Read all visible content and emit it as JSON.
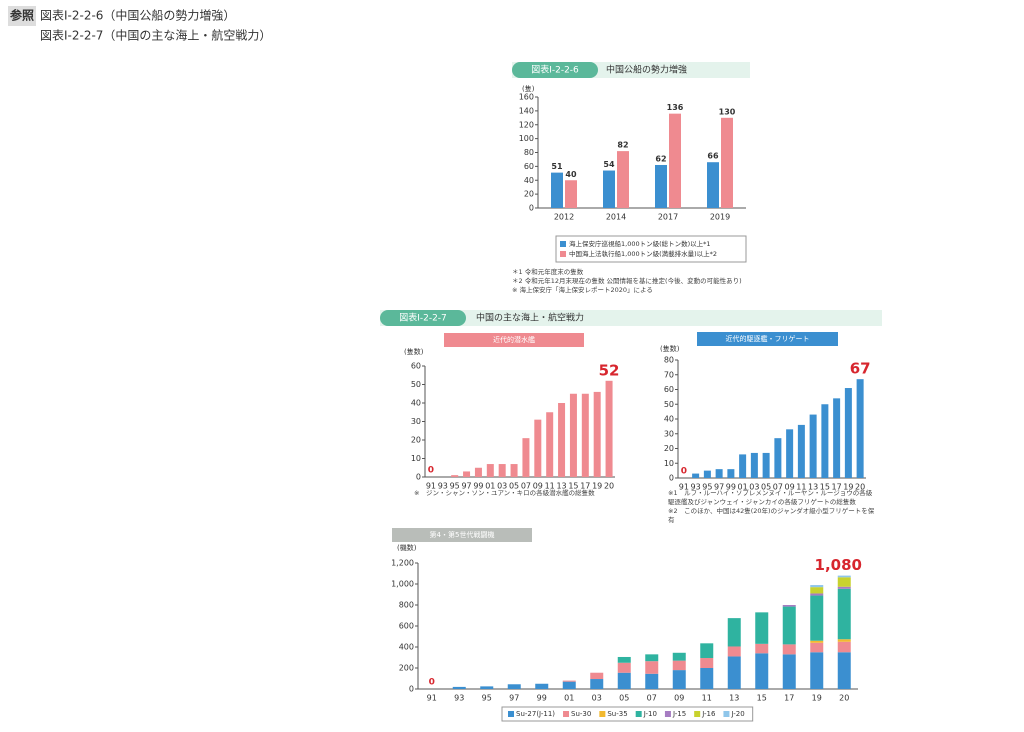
{
  "header": {
    "badge": "参照",
    "lines": [
      "図表I-2-2-6（中国公船の勢力増強）",
      "図表I-2-2-7（中国の主な海上・航空戦力）"
    ]
  },
  "section": {
    "label": "図表Ⅰ-2-2-7",
    "title": "中国の主な海上・航空戦力",
    "color": "#5bb89a"
  },
  "chart_data": [
    {
      "type": "bar",
      "figure_label": "図表Ⅰ-2-2-6",
      "title": "中国公船の勢力増強",
      "header_color": "#5bb89a",
      "y_label": "(隻)",
      "categories": [
        "2012",
        "2014",
        "2017",
        "2019"
      ],
      "series": [
        {
          "name": "海上保安庁巡視船1,000トン級(総トン数)以上*1",
          "color": "#3b8fd0",
          "values": [
            51,
            54,
            62,
            66
          ]
        },
        {
          "name": "中国海上法執行船1,000トン級(満載排水量)以上*2",
          "color": "#ef8a90",
          "values": [
            40,
            82,
            136,
            130
          ]
        }
      ],
      "ylim": [
        0,
        160
      ],
      "yticks": [
        0,
        20,
        40,
        60,
        80,
        100,
        120,
        140,
        160
      ],
      "grid": false,
      "data_labels": true,
      "legend": "bottom",
      "notes": [
        "＊1 令和元年度末の隻数",
        "＊2 令和元年12月末現在の隻数 公開情報を基に推定(今後、変動の可能性あり)",
        "※ 海上保安庁「海上保安レポート2020」による"
      ]
    },
    {
      "type": "bar",
      "title": "近代的潜水艦",
      "header_color": "#ef8a90",
      "color": "#ef8a90",
      "y_label": "(隻数)",
      "categories": [
        "91",
        "93",
        "95",
        "97",
        "99",
        "01",
        "03",
        "05",
        "07",
        "09",
        "11",
        "13",
        "15",
        "17",
        "19",
        "20"
      ],
      "values": [
        0,
        0,
        1,
        3,
        5,
        7,
        7,
        7,
        21,
        31,
        35,
        40,
        45,
        45,
        46,
        52
      ],
      "ylim": [
        0,
        60
      ],
      "yticks": [
        0,
        10,
        20,
        30,
        40,
        50,
        60
      ],
      "grid": false,
      "annotations": [
        "0",
        "52"
      ],
      "annotation_color": "#d7262e",
      "notes": [
        "※　ジン・シャン・ソン・ユアン・キロの各級潜水艦の総隻数"
      ]
    },
    {
      "type": "bar",
      "title": "近代的駆逐艦・フリゲート",
      "header_color": "#3b8fd0",
      "color": "#3b8fd0",
      "y_label": "(隻数)",
      "categories": [
        "91",
        "93",
        "95",
        "97",
        "99",
        "01",
        "03",
        "05",
        "07",
        "09",
        "11",
        "13",
        "15",
        "17",
        "19",
        "20"
      ],
      "values": [
        0,
        3,
        5,
        6,
        6,
        16,
        17,
        17,
        27,
        33,
        36,
        43,
        50,
        54,
        61,
        67
      ],
      "ylim": [
        0,
        80
      ],
      "yticks": [
        0,
        10,
        20,
        30,
        40,
        50,
        60,
        70,
        80
      ],
      "grid": false,
      "annotations": [
        "0",
        "67"
      ],
      "annotation_color": "#d7262e",
      "notes": [
        "※1　ルフ・ルーハイ・ソブレメンヌイ・ルーヤン・ルージョウの各級駆逐艦及びジャンウェイ・ジャンカイの各級フリゲートの総隻数",
        "※2　このほか、中国は42隻(20年)のジャンダオ級小型フリゲートを保有"
      ]
    },
    {
      "type": "stacked_bar",
      "title": "第4・第5世代戦闘機",
      "header_color": "#b9bdb9",
      "y_label": "(機数)",
      "categories": [
        "91",
        "93",
        "95",
        "97",
        "99",
        "01",
        "03",
        "05",
        "07",
        "09",
        "11",
        "13",
        "15",
        "17",
        "19",
        "20"
      ],
      "series": [
        {
          "name": "Su-27(J-11)",
          "color": "#3b8fd0",
          "values": [
            0,
            20,
            25,
            45,
            50,
            70,
            95,
            155,
            145,
            180,
            200,
            310,
            340,
            330,
            350,
            350
          ]
        },
        {
          "name": "Su-30",
          "color": "#ef8a90",
          "values": [
            0,
            0,
            0,
            0,
            0,
            10,
            60,
            95,
            120,
            90,
            95,
            95,
            90,
            95,
            90,
            100
          ]
        },
        {
          "name": "Su-35",
          "color": "#f2b92f",
          "values": [
            0,
            0,
            0,
            0,
            0,
            0,
            0,
            0,
            0,
            0,
            0,
            0,
            0,
            0,
            20,
            24
          ]
        },
        {
          "name": "J-10",
          "color": "#2fb3a0",
          "values": [
            0,
            0,
            0,
            0,
            0,
            0,
            0,
            55,
            65,
            75,
            140,
            270,
            300,
            360,
            430,
            480
          ]
        },
        {
          "name": "J-15",
          "color": "#a67cc2",
          "values": [
            0,
            0,
            0,
            0,
            0,
            0,
            0,
            0,
            0,
            0,
            0,
            0,
            0,
            15,
            20,
            20
          ]
        },
        {
          "name": "J-16",
          "color": "#c8d22e",
          "values": [
            0,
            0,
            0,
            0,
            0,
            0,
            0,
            0,
            0,
            0,
            0,
            0,
            0,
            0,
            60,
            90
          ]
        },
        {
          "name": "J-20",
          "color": "#8fc6ea",
          "values": [
            0,
            0,
            0,
            0,
            0,
            0,
            0,
            0,
            0,
            0,
            0,
            0,
            0,
            0,
            20,
            16
          ]
        }
      ],
      "ylim": [
        0,
        1200
      ],
      "yticks": [
        0,
        200,
        400,
        600,
        800,
        {
          "value": 1000,
          "label": "1,000"
        },
        {
          "value": 1200,
          "label": "1,200"
        }
      ],
      "grid": false,
      "annotations": [
        "0",
        "1,080"
      ],
      "annotation_color": "#d7262e",
      "legend": "bottom"
    }
  ]
}
